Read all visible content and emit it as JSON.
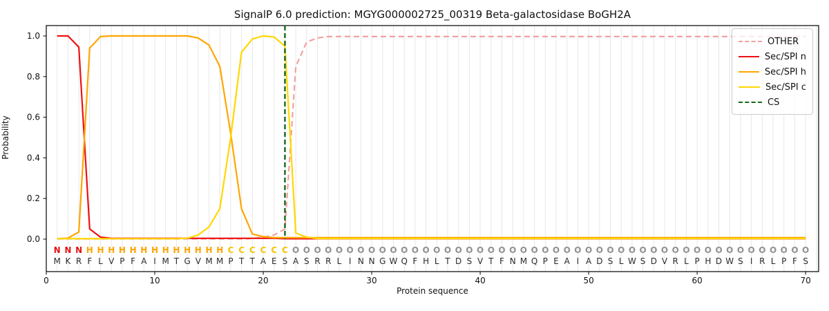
{
  "chart_data": {
    "type": "line",
    "title": "SignalP 6.0 prediction: MGYG000002725_00319 Beta-galactosidase BoGH2A",
    "xlabel": "Protein sequence",
    "ylabel": "Probability",
    "xticks": [
      0,
      10,
      20,
      30,
      40,
      50,
      60,
      70
    ],
    "yticks": [
      0.0,
      0.2,
      0.4,
      0.6,
      0.8,
      1.0
    ],
    "xlim": [
      0,
      71.2
    ],
    "ylim": [
      -0.16,
      1.05
    ],
    "grid": "vertical-per-residue",
    "legend_position": "upper-right",
    "sequence": "MKRFLVPFAIMTGVMMPTTAESASRRLINNGWQFHLTDSVTFNMQPEAIADSLWSDVRLPHDWSIRLPFS",
    "region_annotation": "NNNHHHHHHHHHHHHHCCCCCCOOOOOOOOOOOOOOOOOOOOOOOOOOOOOOOOOOOOOOOOOOOOOOOO",
    "annotation_colors": {
      "N": "#e41414",
      "H": "#ffa500",
      "C": "#f5c400",
      "O": "#909090"
    },
    "sequence_color": "#2b2b2b",
    "cs_position": 22,
    "cs_color": "#156915",
    "x": [
      1,
      2,
      3,
      4,
      5,
      6,
      7,
      8,
      9,
      10,
      11,
      12,
      13,
      14,
      15,
      16,
      17,
      18,
      19,
      20,
      21,
      22,
      23,
      24,
      25,
      26,
      27,
      28,
      29,
      30,
      31,
      32,
      33,
      34,
      35,
      36,
      37,
      38,
      39,
      40,
      41,
      42,
      43,
      44,
      45,
      46,
      47,
      48,
      49,
      50,
      51,
      52,
      53,
      54,
      55,
      56,
      57,
      58,
      59,
      60,
      61,
      62,
      63,
      64,
      65,
      66,
      67,
      68,
      69,
      70
    ],
    "legend": [
      {
        "label": "OTHER",
        "color": "#f3a0a0",
        "dashed": true
      },
      {
        "label": "Sec/SPI n",
        "color": "#ee1111",
        "dashed": false
      },
      {
        "label": "Sec/SPI h",
        "color": "#ffa500",
        "dashed": false
      },
      {
        "label": "Sec/SPI c",
        "color": "#ffd700",
        "dashed": false
      },
      {
        "label": "CS",
        "color": "#156915",
        "dashed": true
      }
    ],
    "series": [
      {
        "name": "OTHER",
        "color": "#f3a0a0",
        "dashed": true,
        "values": [
          0.001,
          0.001,
          0.001,
          0.001,
          0.001,
          0.001,
          0.001,
          0.001,
          0.001,
          0.001,
          0.001,
          0.001,
          0.001,
          0.001,
          0.001,
          0.001,
          0.001,
          0.001,
          0.003,
          0.01,
          0.02,
          0.05,
          0.85,
          0.97,
          0.99,
          0.997,
          0.997,
          0.997,
          0.997,
          0.997,
          0.997,
          0.997,
          0.997,
          0.997,
          0.997,
          0.997,
          0.997,
          0.997,
          0.997,
          0.997,
          0.997,
          0.997,
          0.997,
          0.997,
          0.997,
          0.997,
          0.997,
          0.997,
          0.997,
          0.997,
          0.997,
          0.997,
          0.997,
          0.997,
          0.997,
          0.997,
          0.997,
          0.997,
          0.997,
          0.997,
          0.997,
          0.997,
          0.997,
          0.997,
          0.997,
          0.997,
          0.997,
          0.997,
          0.997,
          0.997
        ]
      },
      {
        "name": "Sec/SPI n",
        "color": "#ee1111",
        "dashed": false,
        "values": [
          1.0,
          1.0,
          0.945,
          0.05,
          0.01,
          0.004,
          0.004,
          0.004,
          0.004,
          0.004,
          0.004,
          0.004,
          0.004,
          0.004,
          0.004,
          0.004,
          0.004,
          0.004,
          0.004,
          0.004,
          0.004,
          0.002,
          0.002,
          0.002,
          0.002,
          0.002,
          0.002,
          0.002,
          0.002,
          0.002,
          0.002,
          0.002,
          0.002,
          0.002,
          0.002,
          0.002,
          0.002,
          0.002,
          0.002,
          0.002,
          0.002,
          0.002,
          0.002,
          0.002,
          0.002,
          0.002,
          0.002,
          0.002,
          0.002,
          0.002,
          0.002,
          0.002,
          0.002,
          0.002,
          0.002,
          0.002,
          0.002,
          0.002,
          0.002,
          0.002,
          0.002,
          0.002,
          0.002,
          0.002,
          0.002,
          0.002,
          0.002,
          0.002,
          0.002,
          0.002
        ]
      },
      {
        "name": "Sec/SPI h",
        "color": "#ffa500",
        "dashed": false,
        "values": [
          0.002,
          0.005,
          0.035,
          0.94,
          0.997,
          1.0,
          1.0,
          1.0,
          1.0,
          1.0,
          1.0,
          1.0,
          1.0,
          0.99,
          0.955,
          0.85,
          0.52,
          0.15,
          0.025,
          0.012,
          0.007,
          0.007,
          0.007,
          0.007,
          0.007,
          0.007,
          0.007,
          0.007,
          0.007,
          0.007,
          0.007,
          0.007,
          0.007,
          0.007,
          0.007,
          0.007,
          0.007,
          0.007,
          0.007,
          0.007,
          0.007,
          0.007,
          0.007,
          0.007,
          0.007,
          0.007,
          0.007,
          0.007,
          0.007,
          0.007,
          0.007,
          0.007,
          0.007,
          0.007,
          0.007,
          0.007,
          0.007,
          0.007,
          0.007,
          0.007,
          0.007,
          0.007,
          0.007,
          0.007,
          0.007,
          0.007,
          0.007,
          0.007,
          0.007,
          0.007
        ]
      },
      {
        "name": "Sec/SPI c",
        "color": "#ffd700",
        "dashed": false,
        "values": [
          0.002,
          0.002,
          0.002,
          0.002,
          0.002,
          0.002,
          0.002,
          0.002,
          0.002,
          0.002,
          0.002,
          0.002,
          0.004,
          0.02,
          0.06,
          0.15,
          0.5,
          0.92,
          0.985,
          1.0,
          0.995,
          0.95,
          0.03,
          0.01,
          0.003,
          0.003,
          0.003,
          0.003,
          0.003,
          0.003,
          0.003,
          0.003,
          0.003,
          0.003,
          0.003,
          0.003,
          0.003,
          0.003,
          0.003,
          0.003,
          0.003,
          0.003,
          0.003,
          0.003,
          0.003,
          0.003,
          0.003,
          0.003,
          0.003,
          0.003,
          0.003,
          0.003,
          0.003,
          0.003,
          0.003,
          0.003,
          0.003,
          0.003,
          0.003,
          0.003,
          0.003,
          0.003,
          0.003,
          0.003,
          0.003,
          0.003,
          0.003,
          0.003,
          0.003,
          0.003
        ]
      }
    ]
  }
}
